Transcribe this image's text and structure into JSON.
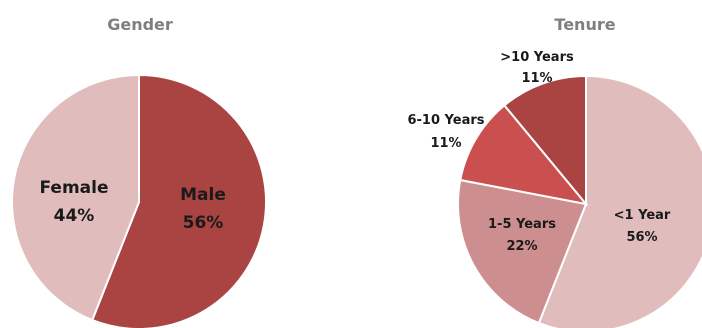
{
  "chart_data": [
    {
      "type": "pie",
      "title": "Gender",
      "start_angle_deg": 0,
      "direction": "clockwise",
      "slices": [
        {
          "label": "Male",
          "value": 56,
          "value_label": "56%",
          "color": "#a94442"
        },
        {
          "label": "Female",
          "value": 44,
          "value_label": "44%",
          "color": "#e0bcbd"
        }
      ]
    },
    {
      "type": "pie",
      "title": "Tenure",
      "start_angle_deg": 0,
      "direction": "clockwise",
      "slices": [
        {
          "label": "<1 Year",
          "value": 56,
          "value_label": "56%",
          "color": "#e0bcbd"
        },
        {
          "label": "1-5 Years",
          "value": 22,
          "value_label": "22%",
          "color": "#cd8e8f"
        },
        {
          "label": "6-10 Years",
          "value": 11,
          "value_label": "11%",
          "color": "#c9504f"
        },
        {
          "label": ">10 Years",
          "value": 11,
          "value_label": "11%",
          "color": "#a94442"
        }
      ]
    }
  ]
}
